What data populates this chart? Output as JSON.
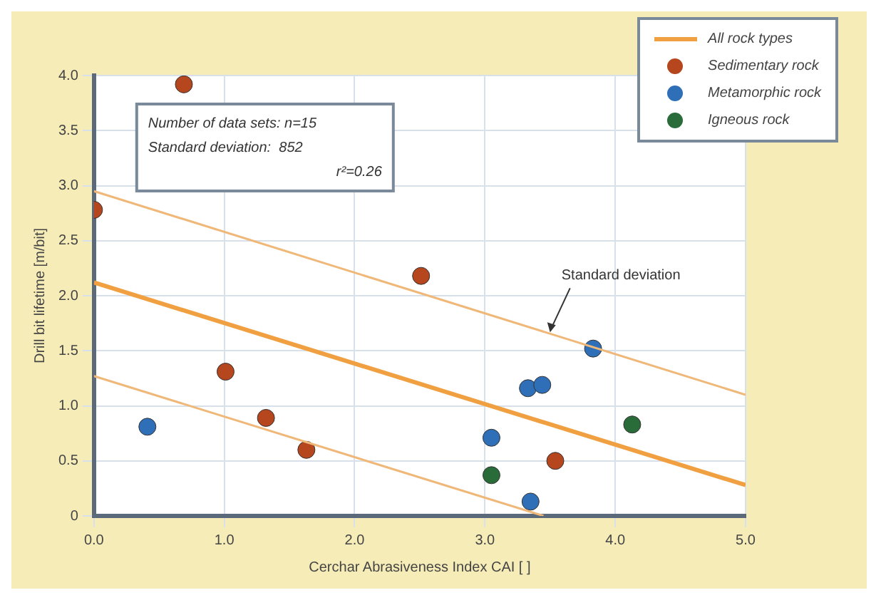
{
  "chart_data": {
    "type": "scatter",
    "xlabel": "Cerchar Abrasiveness Index CAI [ ]",
    "ylabel": "Drill bit lifetime [m/bit]",
    "xlim": [
      0,
      5
    ],
    "ylim": [
      0,
      4
    ],
    "xticks": [
      {
        "value": 0,
        "label": "0.0"
      },
      {
        "value": 1,
        "label": "1.0"
      },
      {
        "value": 2,
        "label": "2.0"
      },
      {
        "value": 3,
        "label": "3.0"
      },
      {
        "value": 4,
        "label": "4.0"
      },
      {
        "value": 5,
        "label": "5.0"
      }
    ],
    "yticks": [
      0,
      {
        "value": 0.5,
        "label": "0.5"
      },
      {
        "value": 1,
        "label": "1.0"
      },
      {
        "value": 1.5,
        "label": "1.5"
      },
      {
        "value": 2,
        "label": "2.0"
      },
      {
        "value": 2.5,
        "label": "2.5"
      },
      {
        "value": 3,
        "label": "3.0"
      },
      {
        "value": 3.5,
        "label": "3.5"
      },
      {
        "value": 4,
        "label": "4.0"
      }
    ],
    "grid": true,
    "legend": "top right",
    "series": [
      {
        "name": "All rock types",
        "type": "line",
        "color": "#f0a040",
        "marker": "none",
        "x": [
          0,
          5
        ],
        "values": [
          2.12,
          0.28
        ]
      },
      {
        "type": "line",
        "color": "#f0b878",
        "marker": "none",
        "x": [
          0,
          5
        ],
        "values": [
          2.95,
          1.1
        ]
      },
      {
        "type": "line",
        "color": "#f0b878",
        "marker": "none",
        "x": [
          0,
          3.45
        ],
        "values": [
          1.27,
          0
        ]
      },
      {
        "name": "Sedimentary rock",
        "color": "#b5461e",
        "marker": "circle",
        "x": [
          0,
          0.69,
          1.01,
          1.32,
          1.63,
          2.51,
          3.54
        ],
        "values": [
          2.78,
          3.92,
          1.31,
          0.89,
          0.6,
          2.18,
          0.5
        ]
      },
      {
        "name": "Metamorphic rock",
        "color": "#2e6fb8",
        "marker": "circle",
        "x": [
          0.41,
          3.05,
          3.33,
          3.44,
          3.83,
          3.35
        ],
        "values": [
          0.81,
          0.71,
          1.16,
          1.19,
          1.52,
          0.13
        ]
      },
      {
        "name": "Igneous rock",
        "color": "#2a6b3a",
        "marker": "circle",
        "x": [
          3.05,
          4.13
        ],
        "values": [
          0.37,
          0.83
        ]
      }
    ],
    "annotations": [
      "Number of data sets: n=15",
      "Standard deviation:  852",
      "r²=0.26",
      {
        "text": "Standard deviation",
        "x": 3.5,
        "y": 1.655
      }
    ]
  }
}
